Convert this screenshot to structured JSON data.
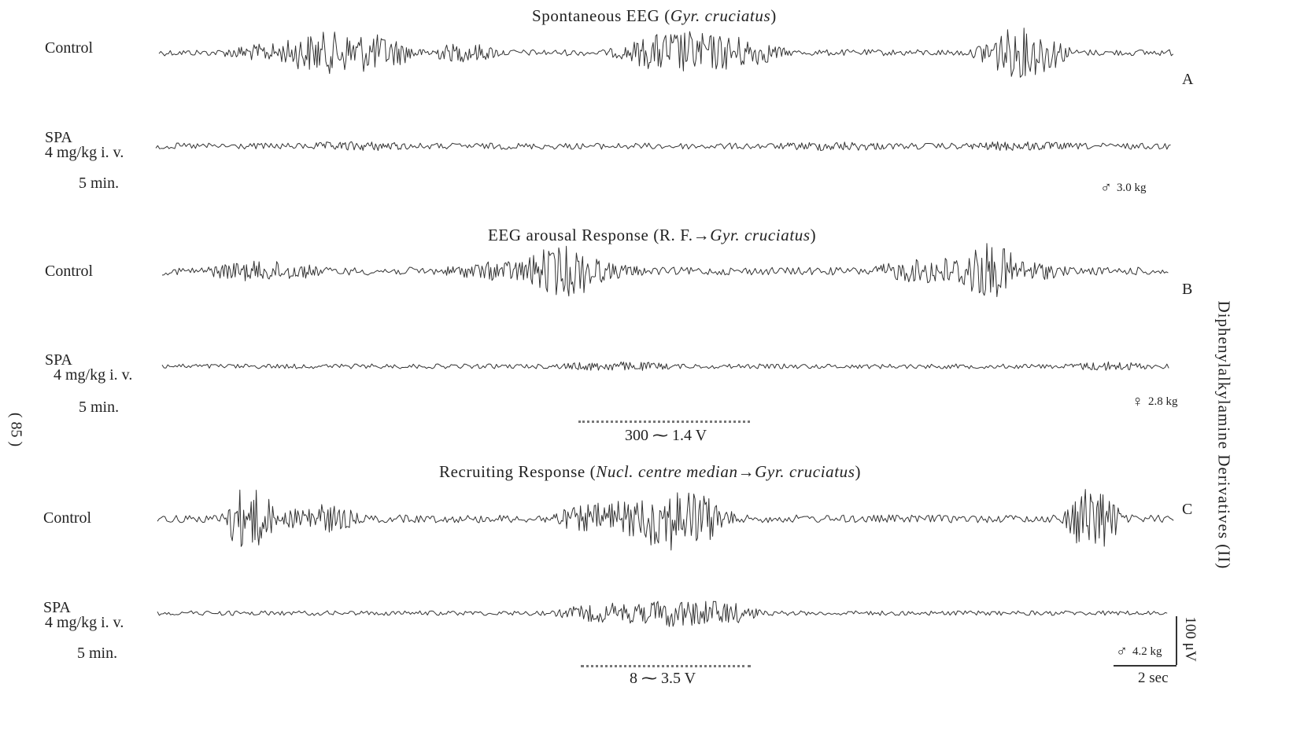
{
  "running_head": "Diphenylalkylamine Derivatives (II)",
  "page_number": "( 85 )",
  "panels": [
    {
      "letter": "A",
      "title_plain": "Spontaneous EEG (",
      "title_italic": "Gyr. cruciatus",
      "title_end": ")",
      "control_label": "Control",
      "drug_label": "SPA",
      "dose_label": "4 mg/kg i. v.",
      "time_label": "5 min.",
      "animal_symbol": "♂",
      "animal_weight": "3.0 kg"
    },
    {
      "letter": "B",
      "title_plain": "EEG arousal Response (R. F.→",
      "title_italic": "Gyr. cruciatus",
      "title_end": ")",
      "control_label": "Control",
      "drug_label": "SPA",
      "dose_label": "4 mg/kg i. v.",
      "time_label": "5 min.",
      "animal_symbol": "♀",
      "animal_weight": "2.8 kg",
      "stimulus": "300 ⁓ 1.4 V"
    },
    {
      "letter": "C",
      "title_plain": "Recruiting Response (",
      "title_italic": "Nucl. centre median→Gyr. cruciatus",
      "title_end": ")",
      "control_label": "Control",
      "drug_label": "SPA",
      "dose_label": "4 mg/kg i. v.",
      "time_label": "5 min.",
      "animal_symbol": "♂",
      "animal_weight": "4.2 kg",
      "stimulus": "8 ⁓ 3.5 V"
    }
  ],
  "calibration": {
    "amplitude": "100 μV",
    "time": "2 sec"
  },
  "colors": {
    "ink": "#2a2a2a",
    "trace": "#333333"
  }
}
